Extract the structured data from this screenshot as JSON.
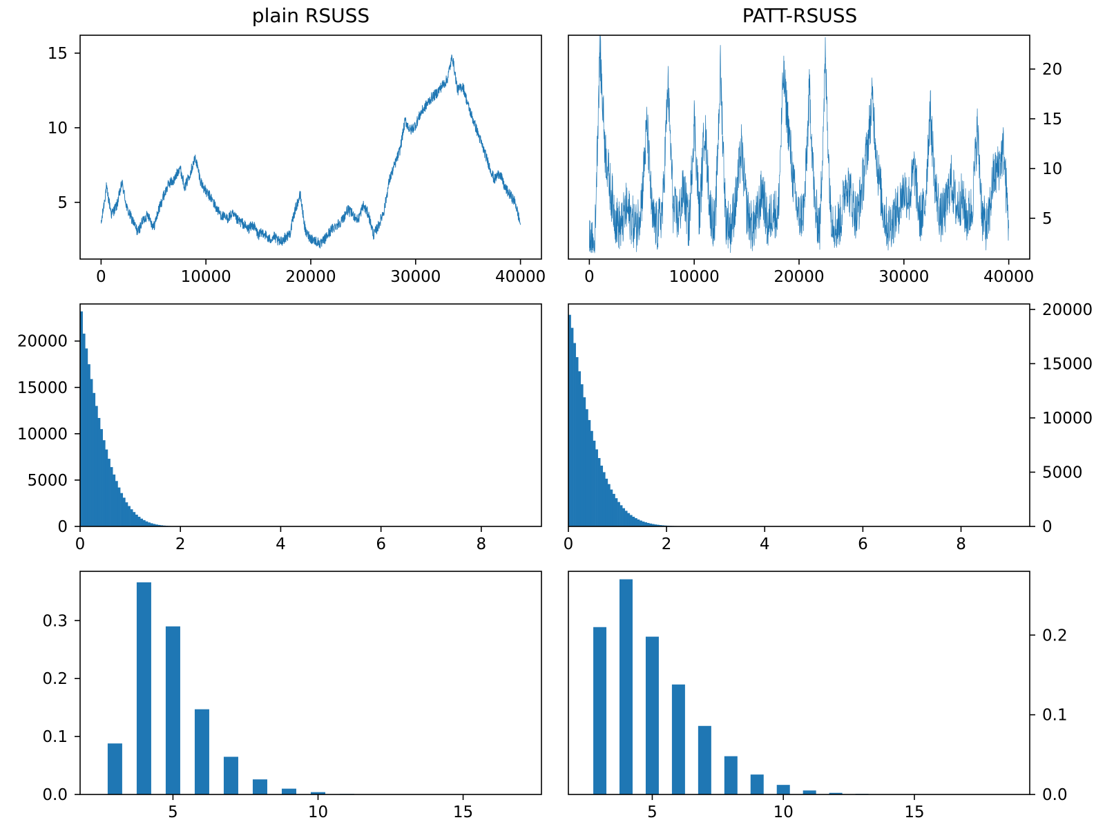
{
  "colors": {
    "series": "#1f77b4",
    "axis": "#000000",
    "background": "#ffffff"
  },
  "titles": {
    "left": "plain RSUSS",
    "right": "PATT-RSUSS"
  },
  "chart_data": [
    {
      "id": "trace-plain",
      "type": "line",
      "column": "left",
      "row": 0,
      "title": "plain RSUSS",
      "xlabel": "",
      "ylabel": "",
      "xlim": [
        -2000,
        42000
      ],
      "ylim": [
        1.2,
        16.2
      ],
      "xticks": [
        0,
        10000,
        20000,
        30000,
        40000
      ],
      "yticks": [
        5,
        10,
        15
      ],
      "yaxis_side": "left",
      "grid": false,
      "legend": "none",
      "x": [
        0,
        500,
        1000,
        1500,
        2000,
        2500,
        3000,
        3500,
        4000,
        4500,
        5000,
        5500,
        6000,
        6500,
        7000,
        7500,
        8000,
        8500,
        9000,
        9500,
        10000,
        10500,
        11000,
        11500,
        12000,
        12500,
        13000,
        13500,
        14000,
        14500,
        15000,
        15500,
        16000,
        16500,
        17000,
        17500,
        18000,
        18500,
        19000,
        19500,
        20000,
        20500,
        21000,
        21500,
        22000,
        22500,
        23000,
        23500,
        24000,
        24500,
        25000,
        25500,
        26000,
        26500,
        27000,
        27500,
        28000,
        28500,
        29000,
        29500,
        30000,
        30500,
        31000,
        31500,
        32000,
        32500,
        33000,
        33500,
        34000,
        34500,
        35000,
        35500,
        36000,
        36500,
        37000,
        37500,
        38000,
        38500,
        39000,
        39500,
        40000
      ],
      "y": [
        3.5,
        6.0,
        4.2,
        4.8,
        6.3,
        4.5,
        3.8,
        3.0,
        3.8,
        4.2,
        3.3,
        4.5,
        5.5,
        6.3,
        6.5,
        7.4,
        6.0,
        7.0,
        8.0,
        6.4,
        5.7,
        5.3,
        4.6,
        4.1,
        3.9,
        4.2,
        3.8,
        3.6,
        3.2,
        3.5,
        2.8,
        3.0,
        2.5,
        2.7,
        2.3,
        2.6,
        2.9,
        4.5,
        5.5,
        3.0,
        2.6,
        2.4,
        2.2,
        2.7,
        3.2,
        3.5,
        3.8,
        4.5,
        4.2,
        3.8,
        4.8,
        4.2,
        2.8,
        3.5,
        4.5,
        6.5,
        7.5,
        8.5,
        10.5,
        9.8,
        10.2,
        11.0,
        11.5,
        12.0,
        12.3,
        12.8,
        13.2,
        14.8,
        12.5,
        12.8,
        11.5,
        10.5,
        9.5,
        8.5,
        7.5,
        6.5,
        7.0,
        6.0,
        5.5,
        5.0,
        3.5
      ],
      "noise": 0.35
    },
    {
      "id": "trace-patt",
      "type": "line",
      "column": "right",
      "row": 0,
      "title": "PATT-RSUSS",
      "xlabel": "",
      "ylabel": "",
      "xlim": [
        -2000,
        42000
      ],
      "ylim": [
        0.9,
        23.4
      ],
      "xticks": [
        0,
        10000,
        20000,
        30000,
        40000
      ],
      "yticks": [
        5,
        10,
        15,
        20
      ],
      "yaxis_side": "right",
      "grid": false,
      "legend": "none",
      "x": [
        0,
        500,
        1000,
        1500,
        2000,
        2500,
        3000,
        3500,
        4000,
        4500,
        5000,
        5500,
        6000,
        6500,
        7000,
        7500,
        8000,
        8500,
        9000,
        9500,
        10000,
        10500,
        11000,
        11500,
        12000,
        12500,
        13000,
        13500,
        14000,
        14500,
        15000,
        15500,
        16000,
        16500,
        17000,
        17500,
        18000,
        18500,
        19000,
        19500,
        20000,
        20500,
        21000,
        21500,
        22000,
        22500,
        23000,
        23500,
        24000,
        24500,
        25000,
        25500,
        26000,
        26500,
        27000,
        27500,
        28000,
        28500,
        29000,
        29500,
        30000,
        30500,
        31000,
        31500,
        32000,
        32500,
        33000,
        33500,
        34000,
        34500,
        35000,
        35500,
        36000,
        36500,
        37000,
        37500,
        38000,
        38500,
        39000,
        39500,
        40000
      ],
      "y": [
        2.3,
        2.0,
        22.0,
        12.0,
        8.0,
        5.0,
        4.0,
        6.0,
        5.0,
        4.0,
        7.0,
        14.5,
        5.0,
        4.0,
        6.0,
        18.5,
        6.0,
        5.0,
        8.0,
        4.0,
        15.0,
        5.0,
        14.5,
        6.0,
        4.0,
        20.0,
        5.0,
        4.0,
        7.0,
        12.0,
        6.0,
        4.0,
        5.0,
        8.0,
        4.0,
        6.0,
        5.0,
        19.5,
        14.0,
        8.0,
        5.0,
        6.0,
        18.0,
        6.0,
        4.0,
        21.0,
        6.0,
        4.0,
        5.0,
        9.0,
        7.0,
        5.0,
        8.0,
        12.0,
        17.0,
        10.0,
        6.0,
        4.0,
        5.0,
        6.0,
        8.0,
        7.0,
        10.0,
        5.0,
        6.0,
        16.0,
        8.0,
        5.0,
        6.0,
        9.0,
        6.0,
        7.0,
        5.0,
        6.0,
        14.0,
        5.0,
        4.0,
        9.0,
        10.0,
        12.0,
        4.0
      ],
      "noise": 2.6
    },
    {
      "id": "hist-plain",
      "type": "bar",
      "column": "left",
      "row": 1,
      "xlabel": "",
      "ylabel": "",
      "xlim": [
        0,
        9.2
      ],
      "ylim": [
        0,
        24000
      ],
      "xticks": [
        0,
        2,
        4,
        6,
        8
      ],
      "yticks": [
        0,
        5000,
        10000,
        15000,
        20000
      ],
      "yaxis_side": "left",
      "grid": false,
      "legend": "none",
      "bin_width": 0.05,
      "bin_start": 0,
      "values": [
        23200,
        20800,
        19200,
        17500,
        15900,
        14400,
        13000,
        11700,
        10500,
        9300,
        8300,
        7300,
        6400,
        5600,
        4900,
        4200,
        3600,
        3100,
        2600,
        2200,
        1850,
        1550,
        1270,
        1040,
        840,
        680,
        540,
        430,
        340,
        265,
        205,
        158,
        120,
        90,
        67,
        49,
        35,
        25,
        18,
        13,
        9,
        6,
        4,
        3,
        2,
        1
      ]
    },
    {
      "id": "hist-patt",
      "type": "bar",
      "column": "right",
      "row": 1,
      "xlabel": "",
      "ylabel": "",
      "xlim": [
        0,
        9.4
      ],
      "ylim": [
        0,
        20500
      ],
      "xticks": [
        0,
        2,
        4,
        6,
        8
      ],
      "yticks": [
        0,
        5000,
        10000,
        15000,
        20000
      ],
      "yaxis_side": "right",
      "grid": false,
      "legend": "none",
      "bin_width": 0.05,
      "bin_start": 0,
      "values": [
        19500,
        18300,
        16900,
        15600,
        14300,
        13100,
        11900,
        10800,
        9800,
        8800,
        7900,
        7100,
        6300,
        5600,
        5000,
        4400,
        3900,
        3400,
        3000,
        2600,
        2250,
        1950,
        1680,
        1440,
        1230,
        1050,
        890,
        760,
        640,
        540,
        450,
        380,
        320,
        265,
        220,
        180,
        150,
        122,
        100,
        82,
        66,
        54,
        43,
        35,
        28,
        22,
        17,
        13,
        10,
        7,
        5,
        3,
        2,
        1
      ]
    },
    {
      "id": "dist-plain",
      "type": "bar",
      "column": "left",
      "row": 2,
      "xlabel": "",
      "ylabel": "",
      "xlim": [
        1.8,
        17.7
      ],
      "ylim": [
        0,
        0.385
      ],
      "xticks": [
        5,
        10,
        15
      ],
      "yticks": [
        0.0,
        0.1,
        0.2,
        0.3
      ],
      "ytick_labels": [
        "0.0",
        "0.1",
        "0.2",
        "0.3"
      ],
      "yaxis_side": "left",
      "grid": false,
      "legend": "none",
      "bar_width": 0.5,
      "x": [
        3,
        4,
        5,
        6,
        7,
        8,
        9,
        10,
        11
      ],
      "values": [
        0.088,
        0.366,
        0.29,
        0.147,
        0.065,
        0.026,
        0.01,
        0.004,
        0.001
      ]
    },
    {
      "id": "dist-patt",
      "type": "bar",
      "column": "right",
      "row": 2,
      "xlabel": "",
      "ylabel": "",
      "xlim": [
        1.8,
        19.4
      ],
      "ylim": [
        0,
        0.28
      ],
      "xticks": [
        5,
        10,
        15
      ],
      "yticks": [
        0.0,
        0.1,
        0.2
      ],
      "ytick_labels": [
        "0.0",
        "0.1",
        "0.2"
      ],
      "yaxis_side": "right",
      "grid": false,
      "legend": "none",
      "bar_width": 0.5,
      "x": [
        3,
        4,
        5,
        6,
        7,
        8,
        9,
        10,
        11,
        12,
        13
      ],
      "values": [
        0.21,
        0.27,
        0.198,
        0.138,
        0.086,
        0.048,
        0.025,
        0.012,
        0.005,
        0.002,
        0.0008
      ]
    }
  ]
}
